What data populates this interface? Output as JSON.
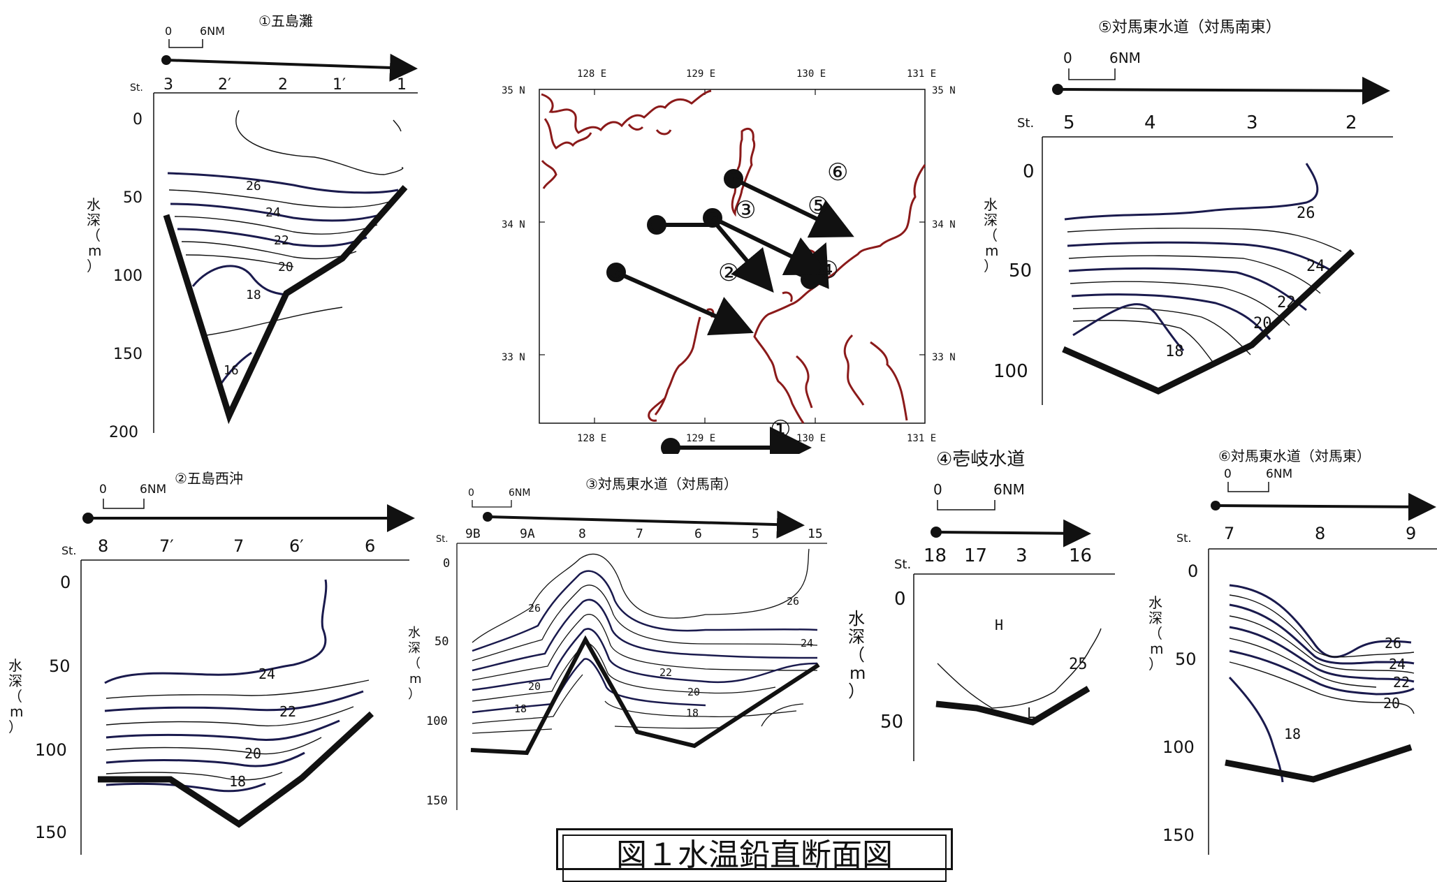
{
  "figure_title": "図１水温鉛直断面図",
  "st_label": "St.",
  "depth_label": "水深（m）",
  "depth_label_chars": [
    "水",
    "深",
    "（",
    "m",
    "）"
  ],
  "map": {
    "lon_labels": [
      "128 E",
      "129 E",
      "130 E",
      "131 E"
    ],
    "lat_labels": [
      "35 N",
      "34 N",
      "33 N"
    ],
    "route_labels": [
      "①",
      "②",
      "③",
      "④",
      "⑤",
      "⑥"
    ],
    "coast_color": "#8b1a1a"
  },
  "sections": [
    {
      "id": "p1",
      "title": "①五島灘",
      "scale_label": "6NM",
      "scale_zero": "0",
      "stations": [
        "3",
        "2′",
        "2",
        "1′",
        "1"
      ],
      "depth_ticks": [
        "0",
        "50",
        "100",
        "150",
        "200"
      ],
      "contour_labels": [
        "26",
        "24",
        "22",
        "20",
        "18",
        "16"
      ]
    },
    {
      "id": "p2",
      "title": "②五島西沖",
      "scale_label": "6NM",
      "scale_zero": "0",
      "stations": [
        "8",
        "7′",
        "7",
        "6′",
        "6"
      ],
      "depth_ticks": [
        "0",
        "50",
        "100",
        "150"
      ],
      "contour_labels": [
        "24",
        "22",
        "20",
        "18"
      ]
    },
    {
      "id": "p3",
      "title": "③対馬東水道（対馬南）",
      "scale_label": "6NM",
      "scale_zero": "0",
      "stations": [
        "9B",
        "9A",
        "8",
        "7",
        "6",
        "5",
        "15"
      ],
      "depth_ticks": [
        "0",
        "50",
        "100",
        "150"
      ],
      "contour_labels": [
        "26",
        "26",
        "24",
        "22",
        "20",
        "20",
        "18",
        "18"
      ]
    },
    {
      "id": "p4",
      "title": "④壱岐水道",
      "scale_label": "6NM",
      "scale_zero": "0",
      "stations": [
        "18",
        "17",
        "3",
        "16"
      ],
      "depth_ticks": [
        "0",
        "50"
      ],
      "contour_labels": [
        "H",
        "25",
        "L"
      ]
    },
    {
      "id": "p5",
      "title": "⑤対馬東水道（対馬南東）",
      "scale_label": "6NM",
      "scale_zero": "0",
      "stations": [
        "5",
        "4",
        "3",
        "2"
      ],
      "depth_ticks": [
        "0",
        "50",
        "100"
      ],
      "contour_labels": [
        "26",
        "24",
        "22",
        "20",
        "18"
      ]
    },
    {
      "id": "p6",
      "title": "⑥対馬東水道（対馬東）",
      "scale_label": "6NM",
      "scale_zero": "0",
      "stations": [
        "7",
        "8",
        "9"
      ],
      "depth_ticks": [
        "0",
        "50",
        "100",
        "150"
      ],
      "contour_labels": [
        "26",
        "24",
        "22",
        "20",
        "18"
      ]
    }
  ]
}
